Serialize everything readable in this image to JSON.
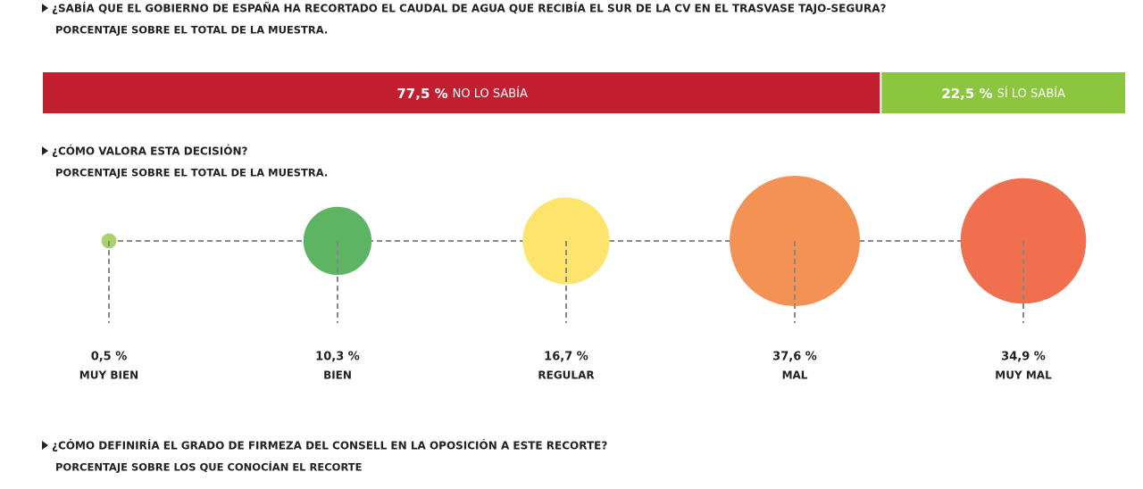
{
  "chart_data": [
    {
      "type": "stacked-bar",
      "title": "¿SABÍA QUE EL GOBIERNO DE ESPAÑA HA RECORTADO EL CAUDAL DE AGUA QUE RECIBÍA EL SUR DE LA CV EN EL TRASVASE TAJO-SEGURA?",
      "subtitle": "PORCENTAJE SOBRE EL TOTAL DE LA MUESTRA.",
      "xlim": [
        0,
        100
      ],
      "series": [
        {
          "name": "NO LO SABÍA",
          "color": "#c11f2f",
          "values": [
            77.5
          ],
          "value_labels": [
            "77,5 %"
          ]
        },
        {
          "name": "SÍ LO SABÍA",
          "color": "#8cc63e",
          "values": [
            22.5
          ],
          "value_labels": [
            "22,5 %"
          ]
        }
      ]
    },
    {
      "type": "bubble",
      "title": "¿CÓMO VALORA ESTA DECISIÓN?",
      "subtitle": "PORCENTAJE SOBRE EL TOTAL DE LA MUESTRA.",
      "categories": [
        "MUY BIEN",
        "BIEN",
        "REGULAR",
        "MAL",
        "MUY MAL"
      ],
      "values": [
        0.5,
        10.3,
        16.7,
        37.6,
        34.9
      ],
      "value_labels": [
        "0,5 %",
        "10,3 %",
        "16,7 %",
        "37,6 %",
        "34,9 %"
      ],
      "colors": [
        "#a9d26b",
        "#5db463",
        "#fde46c",
        "#f39254",
        "#ef6f4f"
      ]
    }
  ],
  "next_section": {
    "title": "¿CÓMO DEFINIRÍA EL GRADO DE FIRMEZA DEL CONSELL EN LA OPOSICIÓN A ESTE RECORTE?",
    "subtitle": "PORCENTAJE SOBRE LOS QUE CONOCÍAN EL RECORTE"
  }
}
